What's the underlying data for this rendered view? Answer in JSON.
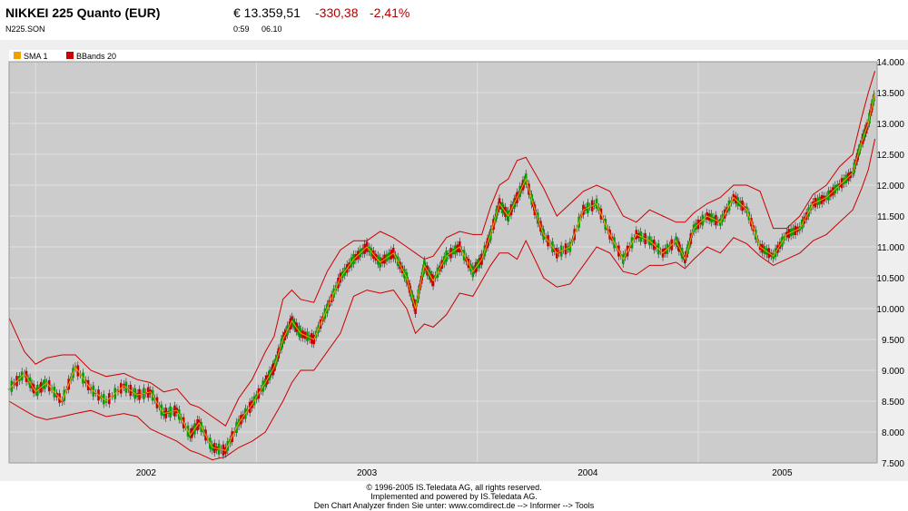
{
  "header": {
    "title": "NIKKEI 225 Quanto (EUR)",
    "symbol": "N225.SON",
    "price": "€ 13.359,51",
    "change": "-330,38",
    "change_pct": "-2,41%",
    "time": "0:59",
    "date": "06.10"
  },
  "colors": {
    "sma": "#f0a000",
    "bbands": "#cc0000",
    "up_candle": "#00a000",
    "down_candle": "#cc0000",
    "plot_bg": "#cccccc",
    "grid": "#e0e0e0"
  },
  "footer": {
    "line1": "© 1996-2005 IS.Teledata AG, all rights reserved.",
    "line2": "Implemented and powered by IS.Teledata AG.",
    "line3": "Den Chart Analyzer finden Sie unter: www.comdirect.de --> Informer --> Tools"
  },
  "chart_data": {
    "type": "line",
    "legend": [
      {
        "name": "SMA 1",
        "color": "#f0a000"
      },
      {
        "name": "BBands 20",
        "color": "#cc0000"
      }
    ],
    "legend_position": "top-left",
    "y_axis_position": "right",
    "ylim": [
      7500,
      14000
    ],
    "yticks": [
      7500,
      8000,
      8500,
      9000,
      9500,
      10000,
      10500,
      11000,
      11500,
      12000,
      12500,
      13000,
      13500,
      14000
    ],
    "ytick_labels": [
      "7.500",
      "8.000",
      "8.500",
      "9.000",
      "9.500",
      "10.000",
      "10.500",
      "11.000",
      "11.500",
      "12.000",
      "12.500",
      "13.000",
      "13.500",
      "14.000"
    ],
    "x_labels": [
      "2002",
      "2003",
      "2004",
      "2005"
    ],
    "xlim": [
      2001.88,
      2005.81
    ],
    "grid": true,
    "series": [
      {
        "name": "SMA 1",
        "x": [
          2001.88,
          2001.95,
          2002.0,
          2002.05,
          2002.12,
          2002.18,
          2002.25,
          2002.32,
          2002.4,
          2002.46,
          2002.52,
          2002.58,
          2002.64,
          2002.7,
          2002.74,
          2002.8,
          2002.86,
          2002.92,
          2002.98,
          2003.04,
          2003.08,
          2003.12,
          2003.16,
          2003.2,
          2003.26,
          2003.32,
          2003.38,
          2003.44,
          2003.5,
          2003.56,
          2003.62,
          2003.68,
          2003.72,
          2003.76,
          2003.8,
          2003.86,
          2003.92,
          2003.98,
          2004.02,
          2004.06,
          2004.1,
          2004.14,
          2004.18,
          2004.22,
          2004.26,
          2004.3,
          2004.36,
          2004.42,
          2004.48,
          2004.54,
          2004.6,
          2004.66,
          2004.72,
          2004.78,
          2004.84,
          2004.9,
          2004.94,
          2004.98,
          2005.04,
          2005.1,
          2005.16,
          2005.22,
          2005.28,
          2005.34,
          2005.4,
          2005.46,
          2005.52,
          2005.58,
          2005.64,
          2005.7,
          2005.74,
          2005.77,
          2005.8
        ],
        "values": [
          8700,
          8950,
          8650,
          8800,
          8500,
          9050,
          8700,
          8500,
          8750,
          8600,
          8650,
          8300,
          8350,
          7950,
          8150,
          7750,
          7700,
          8150,
          8450,
          8800,
          9050,
          9500,
          9800,
          9600,
          9500,
          10000,
          10500,
          10800,
          11000,
          10750,
          10900,
          10500,
          10000,
          10700,
          10450,
          10850,
          11000,
          10600,
          10800,
          11200,
          11700,
          11500,
          11800,
          12100,
          11600,
          11200,
          10900,
          11000,
          11600,
          11700,
          11200,
          10800,
          11200,
          11100,
          10900,
          11100,
          10800,
          11300,
          11500,
          11400,
          11800,
          11600,
          11000,
          10850,
          11200,
          11300,
          11700,
          11800,
          12000,
          12200,
          12700,
          13000,
          13500
        ]
      },
      {
        "name": "BBands 20 upper",
        "x": [
          2001.88,
          2001.95,
          2002.0,
          2002.05,
          2002.12,
          2002.18,
          2002.25,
          2002.32,
          2002.4,
          2002.46,
          2002.52,
          2002.58,
          2002.64,
          2002.7,
          2002.74,
          2002.8,
          2002.86,
          2002.92,
          2002.98,
          2003.04,
          2003.08,
          2003.12,
          2003.16,
          2003.2,
          2003.26,
          2003.32,
          2003.38,
          2003.44,
          2003.5,
          2003.56,
          2003.62,
          2003.68,
          2003.72,
          2003.76,
          2003.8,
          2003.86,
          2003.92,
          2003.98,
          2004.02,
          2004.06,
          2004.1,
          2004.14,
          2004.18,
          2004.22,
          2004.26,
          2004.3,
          2004.36,
          2004.42,
          2004.48,
          2004.54,
          2004.6,
          2004.66,
          2004.72,
          2004.78,
          2004.84,
          2004.9,
          2004.94,
          2004.98,
          2005.04,
          2005.1,
          2005.16,
          2005.22,
          2005.28,
          2005.34,
          2005.4,
          2005.46,
          2005.52,
          2005.58,
          2005.64,
          2005.7,
          2005.74,
          2005.77,
          2005.8
        ],
        "values": [
          9850,
          9300,
          9100,
          9200,
          9250,
          9250,
          9000,
          8900,
          8950,
          8850,
          8800,
          8650,
          8700,
          8450,
          8400,
          8250,
          8100,
          8550,
          8850,
          9300,
          9550,
          10150,
          10300,
          10150,
          10100,
          10600,
          10950,
          11100,
          11100,
          11250,
          11150,
          11000,
          10900,
          10800,
          10850,
          11150,
          11250,
          11200,
          11200,
          11650,
          12000,
          12100,
          12400,
          12450,
          12200,
          11950,
          11500,
          11700,
          11900,
          12000,
          11900,
          11500,
          11400,
          11600,
          11500,
          11400,
          11400,
          11550,
          11700,
          11800,
          12000,
          12000,
          11900,
          11300,
          11300,
          11500,
          11850,
          12000,
          12300,
          12500,
          13100,
          13500,
          13850
        ]
      },
      {
        "name": "BBands 20 lower",
        "x": [
          2001.88,
          2001.95,
          2002.0,
          2002.05,
          2002.12,
          2002.18,
          2002.25,
          2002.32,
          2002.4,
          2002.46,
          2002.52,
          2002.58,
          2002.64,
          2002.7,
          2002.74,
          2002.8,
          2002.86,
          2002.92,
          2002.98,
          2003.04,
          2003.08,
          2003.12,
          2003.16,
          2003.2,
          2003.26,
          2003.32,
          2003.38,
          2003.44,
          2003.5,
          2003.56,
          2003.62,
          2003.68,
          2003.72,
          2003.76,
          2003.8,
          2003.86,
          2003.92,
          2003.98,
          2004.02,
          2004.06,
          2004.1,
          2004.14,
          2004.18,
          2004.22,
          2004.26,
          2004.3,
          2004.36,
          2004.42,
          2004.48,
          2004.54,
          2004.6,
          2004.66,
          2004.72,
          2004.78,
          2004.84,
          2004.9,
          2004.94,
          2004.98,
          2005.04,
          2005.1,
          2005.16,
          2005.22,
          2005.28,
          2005.34,
          2005.4,
          2005.46,
          2005.52,
          2005.58,
          2005.64,
          2005.7,
          2005.74,
          2005.77,
          2005.8
        ],
        "values": [
          8500,
          8350,
          8250,
          8200,
          8250,
          8300,
          8350,
          8250,
          8300,
          8250,
          8050,
          7950,
          7850,
          7700,
          7650,
          7550,
          7600,
          7750,
          7850,
          8000,
          8250,
          8500,
          8800,
          9000,
          9000,
          9300,
          9600,
          10200,
          10300,
          10250,
          10300,
          10000,
          9600,
          9750,
          9700,
          9900,
          10250,
          10200,
          10450,
          10700,
          10900,
          10900,
          10800,
          11100,
          10800,
          10500,
          10350,
          10400,
          10700,
          11000,
          10900,
          10600,
          10550,
          10700,
          10700,
          10750,
          10650,
          10800,
          11000,
          10900,
          11150,
          11050,
          10850,
          10700,
          10800,
          10900,
          11100,
          11200,
          11400,
          11600,
          11950,
          12250,
          12750
        ]
      }
    ]
  }
}
